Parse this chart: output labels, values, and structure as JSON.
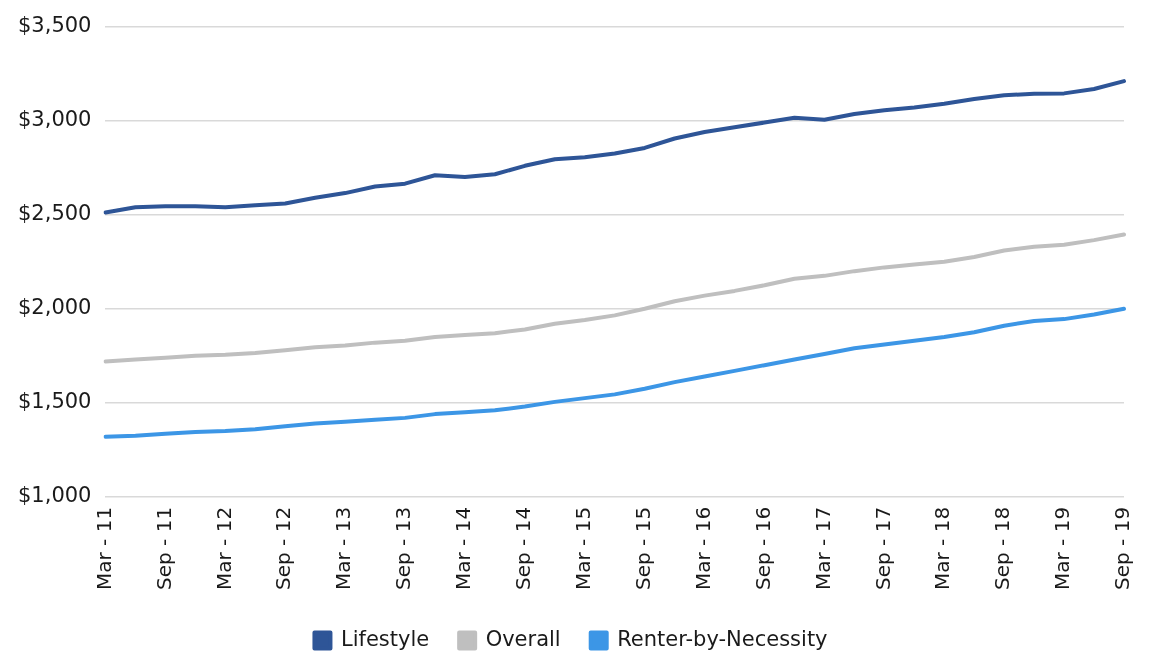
{
  "chart_data": {
    "type": "line",
    "categories": [
      "Mar - 11",
      null,
      "Sep - 11",
      null,
      "Mar - 12",
      null,
      "Sep - 12",
      null,
      "Mar - 13",
      null,
      "Sep - 13",
      null,
      "Mar - 14",
      null,
      "Sep - 14",
      null,
      "Mar - 15",
      null,
      "Sep - 15",
      null,
      "Mar - 16",
      null,
      "Sep - 16",
      null,
      "Mar - 17",
      null,
      "Sep - 17",
      null,
      "Mar - 18",
      null,
      "Sep - 18",
      null,
      "Mar - 19",
      null,
      "Sep - 19"
    ],
    "series": [
      {
        "name": "Lifestyle",
        "color": "#2e5597",
        "values": [
          2512,
          2540,
          2545,
          2545,
          2540,
          2550,
          2560,
          2590,
          2615,
          2650,
          2665,
          2710,
          2700,
          2715,
          2760,
          2795,
          2805,
          2825,
          2855,
          2905,
          2940,
          2965,
          2990,
          3015,
          3005,
          3035,
          3055,
          3070,
          3090,
          3115,
          3135,
          3143,
          3145,
          3168,
          3210
        ]
      },
      {
        "name": "Overall",
        "color": "#bfbfbf",
        "values": [
          1720,
          1730,
          1740,
          1750,
          1755,
          1765,
          1780,
          1795,
          1805,
          1820,
          1830,
          1850,
          1860,
          1870,
          1890,
          1920,
          1940,
          1965,
          2000,
          2040,
          2070,
          2095,
          2125,
          2160,
          2175,
          2200,
          2220,
          2235,
          2250,
          2275,
          2310,
          2330,
          2340,
          2365,
          2395
        ]
      },
      {
        "name": "Renter-by-Necessity",
        "color": "#3c96e6",
        "values": [
          1320,
          1325,
          1335,
          1345,
          1350,
          1360,
          1375,
          1390,
          1400,
          1410,
          1420,
          1440,
          1450,
          1460,
          1480,
          1505,
          1525,
          1545,
          1575,
          1610,
          1640,
          1670,
          1700,
          1730,
          1760,
          1790,
          1810,
          1830,
          1850,
          1875,
          1910,
          1935,
          1945,
          1970,
          2000
        ]
      }
    ],
    "ylim": [
      1000,
      3500
    ],
    "yticks": [
      {
        "value": 1000,
        "label": "$1,000"
      },
      {
        "value": 1500,
        "label": "$1,500"
      },
      {
        "value": 2000,
        "label": "$2,000"
      },
      {
        "value": 2500,
        "label": "$2,500"
      },
      {
        "value": 3000,
        "label": "$3,000"
      },
      {
        "value": 3500,
        "label": "$3,500"
      }
    ],
    "grid": "y",
    "legend": "bottom",
    "marker": "none",
    "line_style": "solid"
  }
}
